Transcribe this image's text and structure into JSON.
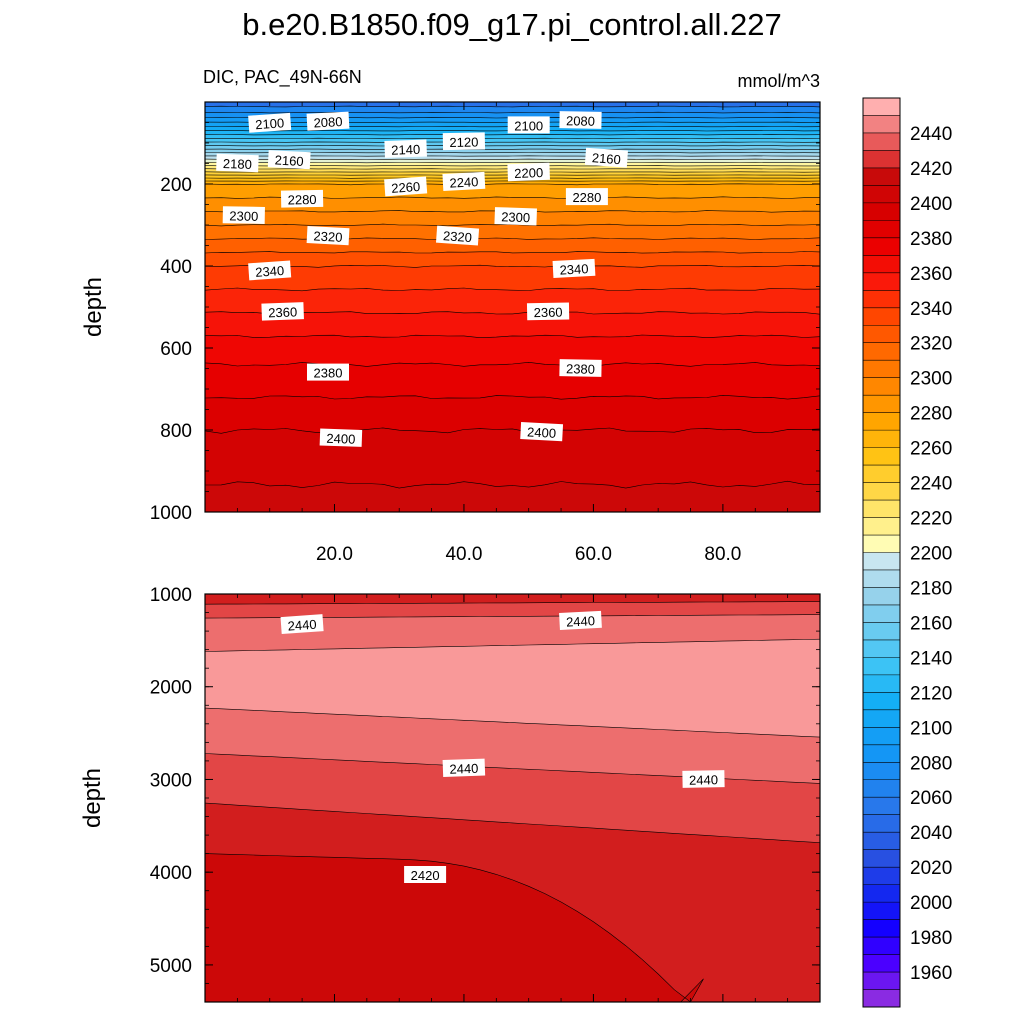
{
  "chart_data": {
    "type": "contour",
    "title": "b.e20.B1850.f09_g17.pi_control.all.227",
    "subtitle_left": "DIC, PAC_49N-66N",
    "subtitle_right": "mmol/m^3",
    "variable": "DIC",
    "region": "PAC_49N-66N",
    "units": "mmol/m^3",
    "upper_panel": {
      "ylabel": "depth",
      "ylim": [
        0,
        1000
      ],
      "yticks": [
        "200",
        "400",
        "600",
        "800",
        "1000"
      ],
      "xlim": [
        0,
        95
      ],
      "xticks": [
        "20.0",
        "40.0",
        "60.0",
        "80.0"
      ],
      "contour_labels": [
        {
          "text": "2100",
          "x": 10,
          "y": 52
        },
        {
          "text": "2080",
          "x": 19,
          "y": 48
        },
        {
          "text": "2140",
          "x": 31,
          "y": 115
        },
        {
          "text": "2120",
          "x": 40,
          "y": 97
        },
        {
          "text": "2100",
          "x": 50,
          "y": 57
        },
        {
          "text": "2080",
          "x": 58,
          "y": 45
        },
        {
          "text": "2180",
          "x": 5,
          "y": 150
        },
        {
          "text": "2160",
          "x": 13,
          "y": 142
        },
        {
          "text": "2160",
          "x": 62,
          "y": 137
        },
        {
          "text": "2260",
          "x": 31,
          "y": 207
        },
        {
          "text": "2240",
          "x": 40,
          "y": 195
        },
        {
          "text": "2200",
          "x": 50,
          "y": 172
        },
        {
          "text": "2280",
          "x": 15,
          "y": 237
        },
        {
          "text": "2280",
          "x": 59,
          "y": 232
        },
        {
          "text": "2300",
          "x": 6,
          "y": 277
        },
        {
          "text": "2300",
          "x": 48,
          "y": 280
        },
        {
          "text": "2320",
          "x": 19,
          "y": 327
        },
        {
          "text": "2320",
          "x": 39,
          "y": 327
        },
        {
          "text": "2340",
          "x": 10,
          "y": 412
        },
        {
          "text": "2340",
          "x": 57,
          "y": 407
        },
        {
          "text": "2360",
          "x": 12,
          "y": 512
        },
        {
          "text": "2360",
          "x": 53,
          "y": 512
        },
        {
          "text": "2380",
          "x": 19,
          "y": 660
        },
        {
          "text": "2380",
          "x": 58,
          "y": 650
        },
        {
          "text": "2400",
          "x": 21,
          "y": 820
        },
        {
          "text": "2400",
          "x": 52,
          "y": 805
        }
      ]
    },
    "lower_panel": {
      "ylabel": "depth",
      "ylim": [
        1000,
        5400
      ],
      "yticks": [
        "1000",
        "2000",
        "3000",
        "4000",
        "5000"
      ],
      "xlim": [
        0,
        95
      ],
      "contour_labels": [
        {
          "text": "2440",
          "x": 15,
          "y": 1330
        },
        {
          "text": "2440",
          "x": 58,
          "y": 1290
        },
        {
          "text": "2440",
          "x": 40,
          "y": 2880
        },
        {
          "text": "2440",
          "x": 77,
          "y": 3000
        },
        {
          "text": "2420",
          "x": 34,
          "y": 4030
        }
      ]
    },
    "colorbar": {
      "levels_min": 1950,
      "levels_max": 2460,
      "interval": 10,
      "tick_labels": [
        "1960",
        "1980",
        "2000",
        "2020",
        "2040",
        "2060",
        "2080",
        "2100",
        "2120",
        "2140",
        "2160",
        "2180",
        "2200",
        "2220",
        "2240",
        "2260",
        "2280",
        "2300",
        "2320",
        "2340",
        "2360",
        "2380",
        "2400",
        "2420",
        "2440"
      ]
    }
  }
}
